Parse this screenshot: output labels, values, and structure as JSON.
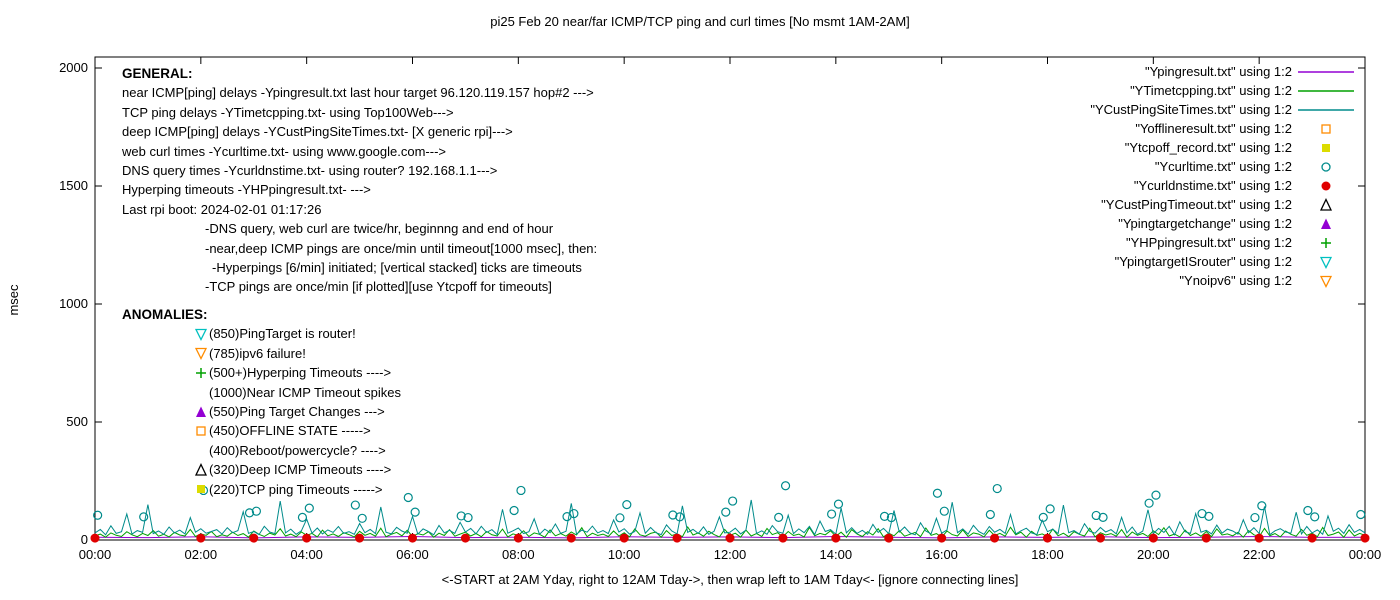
{
  "title": "pi25 Feb 20  near/far ICMP/TCP ping and curl times [No msmt 1AM-2AM]",
  "axes": {
    "ylabel": "msec",
    "yticks": [
      0,
      500,
      1000,
      1500,
      2000
    ],
    "xtick_hours": [
      0,
      2,
      4,
      6,
      8,
      10,
      12,
      14,
      16,
      18,
      20,
      22,
      24
    ],
    "xtick_labels": [
      "00:00",
      "02:00",
      "04:00",
      "06:00",
      "08:00",
      "10:00",
      "12:00",
      "14:00",
      "16:00",
      "18:00",
      "20:00",
      "22:00",
      "00:00"
    ],
    "xcaption": "<-START at 2AM Yday, right to 12AM Tday->, then wrap left to 1AM Tday<- [ignore connecting lines]"
  },
  "general": {
    "heading": "GENERAL:",
    "lines": [
      {
        "indent": 0,
        "text": "near ICMP[ping] delays -Ypingresult.txt last hour target 96.120.119.157 hop#2 --->"
      },
      {
        "indent": 0,
        "text": "TCP ping delays -YTimetcpping.txt- using Top100Web--->"
      },
      {
        "indent": 0,
        "text": "deep ICMP[ping] delays -YCustPingSiteTimes.txt- [X generic rpi]--->"
      },
      {
        "indent": 0,
        "text": "web curl times -Ycurltime.txt- using www.google.com--->"
      },
      {
        "indent": 0,
        "text": "DNS query times -Ycurldnstime.txt- using router? 192.168.1.1--->"
      },
      {
        "indent": 0,
        "text": "Hyperping timeouts -YHPpingresult.txt- --->"
      },
      {
        "indent": 0,
        "text": "Last rpi boot: 2024-02-01 01:17:26"
      },
      {
        "indent": 1,
        "text": "-DNS query, web curl are twice/hr, beginnng and end of hour"
      },
      {
        "indent": 1,
        "text": "-near,deep ICMP pings are once/min until timeout[1000 msec], then:"
      },
      {
        "indent": 2,
        "text": "-Hyperpings [6/min] initiated; [vertical stacked] ticks are timeouts"
      },
      {
        "indent": 1,
        "text": "-TCP pings are once/min [if plotted][use Ytcpoff for timeouts]"
      }
    ]
  },
  "anomalies": {
    "heading": "ANOMALIES:",
    "lines": [
      {
        "marker": "triangle-down-open",
        "color": "#00c0c0",
        "text": "(850)PingTarget is router!"
      },
      {
        "marker": "triangle-down-open",
        "color": "#ff8c00",
        "text": "(785)ipv6 failure!"
      },
      {
        "marker": "plus",
        "color": "#00a000",
        "text": "(500+)Hyperping Timeouts ---->"
      },
      {
        "marker": null,
        "color": null,
        "text": "(1000)Near ICMP Timeout spikes"
      },
      {
        "marker": "triangle-filled",
        "color": "#9400d3",
        "text": "(550)Ping Target Changes --->"
      },
      {
        "marker": "square-open",
        "color": "#ff8c00",
        "text": "(450)OFFLINE STATE ----->"
      },
      {
        "marker": null,
        "color": null,
        "text": "(400)Reboot/powercycle? ---->"
      },
      {
        "marker": "triangle-open",
        "color": "#000000",
        "text": "(320)Deep ICMP Timeouts ---->"
      },
      {
        "marker": "square-filled",
        "color": "#dcdc00",
        "text": "(220)TCP ping Timeouts ----->"
      }
    ]
  },
  "chart_data": {
    "type": "line",
    "title": "pi25 Feb 20  near/far ICMP/TCP ping and curl times [No msmt 1AM-2AM]",
    "xlabel": "<-START at 2AM Yday, right to 12AM Tday->, then wrap left to 1AM Tday<- [ignore connecting lines]",
    "ylabel": "msec",
    "ylim": [
      0,
      2000
    ],
    "xlim_hours": [
      0,
      24
    ],
    "grid": false,
    "legend_position": "top-right",
    "series": [
      {
        "name": "Ypingresult.txt",
        "label": "\"Ypingresult.txt\" using 1:2",
        "style": "line",
        "color": "#9400d3",
        "x_step_hours": 1,
        "values": [
          12,
          10,
          14,
          9,
          13,
          11,
          15,
          10,
          12,
          9,
          14,
          11,
          13,
          10,
          15,
          12,
          9,
          13,
          11,
          14,
          10,
          12,
          15,
          11,
          12
        ]
      },
      {
        "name": "YTimetcpping.txt",
        "label": "\"YTimetcpping.txt\" using 1:2",
        "style": "line",
        "color": "#00a000",
        "x_step_hours": 0.1,
        "values": [
          18,
          25,
          12,
          30,
          20,
          15,
          35,
          22,
          14,
          28,
          19,
          40,
          16,
          24,
          13,
          32,
          21,
          17,
          45,
          15,
          26,
          20,
          36,
          14,
          22,
          16,
          33,
          19,
          27,
          12,
          38,
          24,
          15,
          29,
          21,
          48,
          17,
          25,
          14,
          34,
          20,
          28,
          13,
          42,
          18,
          26,
          15,
          31,
          23,
          13,
          37,
          20,
          28,
          16,
          50,
          14,
          24,
          32,
          18,
          41,
          15,
          27,
          21,
          35,
          12,
          29,
          19,
          44,
          16,
          25,
          33,
          17,
          28,
          14,
          36,
          22,
          17,
          46,
          13,
          26,
          20,
          39,
          15,
          30,
          24,
          12,
          43,
          18,
          27,
          16,
          34,
          21,
          52,
          14,
          29,
          19,
          25,
          15,
          38,
          17,
          31,
          13,
          47,
          22,
          16,
          28,
          34,
          12,
          40,
          19,
          26,
          14,
          55,
          21,
          30,
          16,
          37,
          23,
          13,
          45,
          20,
          29,
          12,
          42,
          17,
          27,
          15,
          49,
          23,
          31,
          14,
          36,
          19,
          25,
          13,
          53,
          18,
          28,
          22,
          39,
          16,
          33,
          12,
          44,
          26,
          15,
          35,
          21,
          48,
          13,
          29,
          18,
          40,
          16,
          24,
          32,
          14,
          51,
          20,
          27,
          12,
          38,
          23,
          17,
          43,
          15,
          30,
          25,
          13,
          41,
          19,
          28,
          16,
          54,
          22,
          33,
          12,
          37,
          20,
          26,
          15,
          46,
          18,
          29,
          14,
          35,
          24,
          17,
          50,
          13,
          31,
          21,
          27,
          16,
          44,
          12,
          34,
          20,
          28,
          15,
          39,
          23,
          52,
          17,
          25,
          13,
          42,
          19,
          30,
          16,
          36,
          14,
          47,
          21,
          26,
          18,
          32,
          12,
          40,
          22,
          15,
          49,
          18,
          27,
          13,
          38,
          24,
          16,
          45,
          20,
          29,
          14,
          53,
          19,
          25,
          34,
          12,
          43,
          17,
          28,
          20
        ]
      },
      {
        "name": "YCustPingSiteTimes.txt",
        "label": "\"YCustPingSiteTimes.txt\" using 1:2",
        "style": "line",
        "color": "#008b8b",
        "x_step_hours": 0.1,
        "values": [
          30,
          45,
          22,
          60,
          28,
          35,
          110,
          25,
          40,
          32,
          150,
          27,
          38,
          24,
          55,
          30,
          42,
          26,
          95,
          33,
          48,
          29,
          36,
          44,
          25,
          52,
          31,
          40,
          120,
          28,
          36,
          23,
          58,
          34,
          27,
          165,
          30,
          46,
          24,
          39,
          88,
          29,
          51,
          26,
          43,
          32,
          57,
          28,
          35,
          24,
          70,
          31,
          45,
          27,
          140,
          33,
          26,
          54,
          38,
          29,
          100,
          25,
          47,
          36,
          22,
          62,
          30,
          41,
          28,
          75,
          34,
          49,
          26,
          58,
          32,
          44,
          23,
          130,
          29,
          39,
          51,
          27,
          35,
          90,
          24,
          46,
          31,
          68,
          28,
          37,
          155,
          25,
          42,
          33,
          59,
          30,
          40,
          27,
          85,
          34,
          48,
          25,
          36,
          115,
          29,
          53,
          31,
          23,
          64,
          38,
          26,
          145,
          32,
          45,
          28,
          56,
          24,
          37,
          98,
          30,
          33,
          50,
          26,
          42,
          170,
          28,
          39,
          24,
          61,
          35,
          29,
          105,
          27,
          47,
          31,
          58,
          23,
          80,
          36,
          44,
          25,
          135,
          30,
          52,
          28,
          41,
          24,
          66,
          32,
          49,
          27,
          125,
          34,
          55,
          30,
          22,
          73,
          38,
          26,
          92,
          29,
          43,
          160,
          31,
          47,
          25,
          62,
          36,
          24,
          57,
          33,
          45,
          28,
          108,
          26,
          39,
          50,
          30,
          23,
          84,
          35,
          46,
          27,
          148,
          31,
          40,
          25,
          69,
          37,
          29,
          53,
          34,
          44,
          26,
          96,
          30,
          55,
          24,
          38,
          128,
          27,
          49,
          32,
          58,
          22,
          77,
          35,
          28,
          112,
          33,
          41,
          26,
          63,
          29,
          46,
          38,
          25,
          86,
          31,
          52,
          27,
          142,
          23,
          39,
          48,
          34,
          29,
          118,
          26,
          57,
          30,
          43,
          24,
          102,
          37,
          50,
          28,
          65,
          32,
          45,
          30
        ]
      },
      {
        "name": "Yofflineresult.txt",
        "label": "\"Yofflineresult.txt\" using 1:2",
        "style": "points",
        "marker": "square-open",
        "color": "#ff8c00",
        "points": []
      },
      {
        "name": "Ytcpoff_record.txt",
        "label": "\"Ytcpoff_record.txt\" using 1:2",
        "style": "points",
        "marker": "square-filled",
        "color": "#dcdc00",
        "points": []
      },
      {
        "name": "Ycurltime.txt",
        "label": "\"Ycurltime.txt\" using 1:2",
        "style": "points",
        "marker": "circle-open",
        "color": "#008b8b",
        "points": [
          [
            0.05,
            105
          ],
          [
            0.92,
            98
          ],
          [
            2.05,
            210
          ],
          [
            2.92,
            115
          ],
          [
            3.05,
            122
          ],
          [
            3.92,
            96
          ],
          [
            4.05,
            135
          ],
          [
            4.92,
            148
          ],
          [
            5.05,
            92
          ],
          [
            5.92,
            180
          ],
          [
            6.05,
            118
          ],
          [
            6.92,
            102
          ],
          [
            7.05,
            95
          ],
          [
            7.92,
            125
          ],
          [
            8.05,
            210
          ],
          [
            8.92,
            99
          ],
          [
            9.05,
            112
          ],
          [
            9.92,
            94
          ],
          [
            10.05,
            150
          ],
          [
            10.92,
            106
          ],
          [
            11.05,
            98
          ],
          [
            11.92,
            118
          ],
          [
            12.05,
            165
          ],
          [
            12.92,
            96
          ],
          [
            13.05,
            230
          ],
          [
            13.92,
            110
          ],
          [
            14.05,
            152
          ],
          [
            14.92,
            100
          ],
          [
            15.05,
            95
          ],
          [
            15.92,
            198
          ],
          [
            16.05,
            122
          ],
          [
            16.92,
            108
          ],
          [
            17.05,
            218
          ],
          [
            17.92,
            96
          ],
          [
            18.05,
            132
          ],
          [
            18.92,
            104
          ],
          [
            19.05,
            96
          ],
          [
            19.92,
            156
          ],
          [
            20.05,
            190
          ],
          [
            20.92,
            112
          ],
          [
            21.05,
            100
          ],
          [
            21.92,
            95
          ],
          [
            22.05,
            145
          ],
          [
            22.92,
            125
          ],
          [
            23.05,
            98
          ],
          [
            23.92,
            108
          ]
        ]
      },
      {
        "name": "Ycurldnstime.txt",
        "label": "\"Ycurldnstime.txt\" using 1:2",
        "style": "points",
        "marker": "circle-filled",
        "color": "#e00000",
        "points": [
          [
            0,
            8
          ],
          [
            2,
            8
          ],
          [
            3,
            8
          ],
          [
            4,
            8
          ],
          [
            5,
            8
          ],
          [
            6,
            8
          ],
          [
            7,
            8
          ],
          [
            8,
            8
          ],
          [
            9,
            8
          ],
          [
            10,
            8
          ],
          [
            11,
            8
          ],
          [
            12,
            8
          ],
          [
            13,
            8
          ],
          [
            14,
            8
          ],
          [
            15,
            8
          ],
          [
            16,
            8
          ],
          [
            17,
            8
          ],
          [
            18,
            8
          ],
          [
            19,
            8
          ],
          [
            20,
            8
          ],
          [
            21,
            8
          ],
          [
            22,
            8
          ],
          [
            23,
            8
          ],
          [
            24,
            8
          ]
        ]
      },
      {
        "name": "YCustPingTimeout.txt",
        "label": "\"YCustPingTimeout.txt\" using 1:2",
        "style": "points",
        "marker": "triangle-open",
        "color": "#000000",
        "points": []
      },
      {
        "name": "Ypingtargetchange",
        "label": "\"Ypingtargetchange\" using 1:2",
        "style": "points",
        "marker": "triangle-filled",
        "color": "#9400d3",
        "points": []
      },
      {
        "name": "YHPpingresult.txt",
        "label": "\"YHPpingresult.txt\" using 1:2",
        "style": "points",
        "marker": "plus",
        "color": "#00a000",
        "points": []
      },
      {
        "name": "YpingtargetISrouter",
        "label": "\"YpingtargetISrouter\" using 1:2",
        "style": "points",
        "marker": "triangle-down-open",
        "color": "#00c0c0",
        "points": []
      },
      {
        "name": "Ynoipv6",
        "label": "\"Ynoipv6\" using 1:2",
        "style": "points",
        "marker": "triangle-down-open",
        "color": "#ff8c00",
        "points": []
      }
    ]
  }
}
